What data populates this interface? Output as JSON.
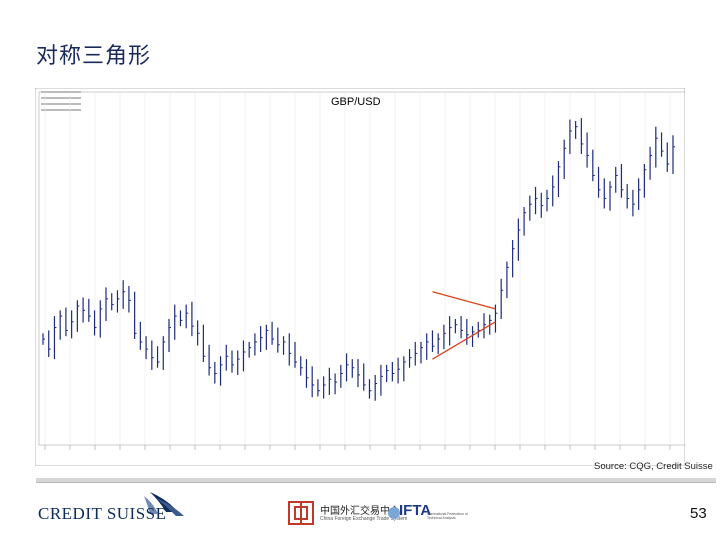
{
  "slide": {
    "title": "对称三角形",
    "source": "Source: CQG, Credit Suisse",
    "page_number": "53"
  },
  "branding": {
    "company": "CREDIT SUISSE",
    "partner_cn": "中国外汇交易中心",
    "partner_en": "China Foreign Exchange Trade System",
    "ifta": "IFTA",
    "ifta_sub": "International Federation of Technical Analysts",
    "brand_color": "#0e2b5c"
  },
  "chart_data": {
    "type": "candlestick",
    "title": "GBP/USD",
    "ylim": [
      1.4,
      1.63
    ],
    "y_ticks": [
      1.62,
      1.6,
      1.58,
      1.56,
      1.54,
      1.52,
      1.5,
      1.48,
      1.46,
      1.44,
      1.42
    ],
    "close_values": [
      1.462,
      1.455,
      1.47,
      1.478,
      1.468,
      1.474,
      1.485,
      1.482,
      1.478,
      1.47,
      1.483,
      1.49,
      1.486,
      1.49,
      1.495,
      1.489,
      1.466,
      1.46,
      1.455,
      1.449,
      1.446,
      1.46,
      1.47,
      1.478,
      1.475,
      1.48,
      1.471,
      1.466,
      1.45,
      1.442,
      1.438,
      1.444,
      1.45,
      1.444,
      1.448,
      1.453,
      1.456,
      1.46,
      1.463,
      1.468,
      1.462,
      1.458,
      1.46,
      1.452,
      1.446,
      1.442,
      1.435,
      1.43,
      1.426,
      1.43,
      1.434,
      1.432,
      1.438,
      1.444,
      1.442,
      1.437,
      1.43,
      1.426,
      1.431,
      1.436,
      1.44,
      1.438,
      1.441,
      1.446,
      1.449,
      1.452,
      1.456,
      1.46,
      1.457,
      1.462,
      1.466,
      1.47,
      1.472,
      1.468,
      1.465,
      1.467,
      1.468,
      1.472,
      1.475,
      1.48,
      1.496,
      1.512,
      1.525,
      1.538,
      1.55,
      1.556,
      1.56,
      1.555,
      1.56,
      1.568,
      1.582,
      1.595,
      1.607,
      1.61,
      1.598,
      1.59,
      1.576,
      1.566,
      1.56,
      1.568,
      1.576,
      1.566,
      1.56,
      1.556,
      1.566,
      1.58,
      1.59,
      1.602,
      1.593,
      1.584,
      1.596
    ],
    "triangle": {
      "upper_line": [
        [
          68,
          1.495
        ],
        [
          79,
          1.483
        ]
      ],
      "lower_line": [
        [
          68,
          1.448
        ],
        [
          79,
          1.474
        ]
      ],
      "color": "#d9431c"
    },
    "candle_color": "#1d2a7a",
    "grid": "vertical"
  }
}
